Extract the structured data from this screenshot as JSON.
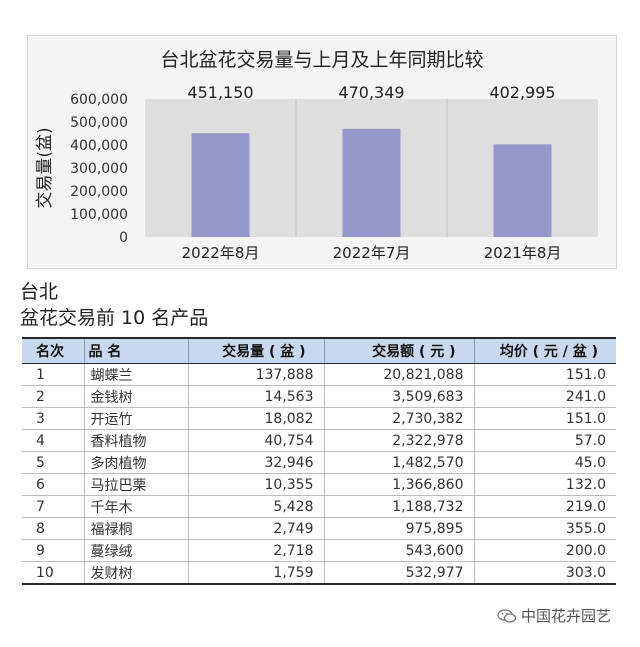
{
  "chart_data": {
    "type": "bar",
    "title": "台北盆花交易量与上月及上年同期比较",
    "ylabel": "交易量(盆)",
    "categories": [
      "2022年8月",
      "2022年7月",
      "2021年8月"
    ],
    "values": [
      451150,
      470349,
      402995
    ],
    "value_labels": [
      "451,150",
      "470,349",
      "402,995"
    ],
    "ylim": [
      0,
      600000
    ],
    "yticks": [
      0,
      100000,
      200000,
      300000,
      400000,
      500000,
      600000
    ],
    "ytick_labels": [
      "0",
      "100,000",
      "200,000",
      "300,000",
      "400,000",
      "500,000",
      "600,000"
    ],
    "bar_color": "#9597ca",
    "plot_bg": "#dedede",
    "grid": false
  },
  "heading": "台北",
  "subheading": "盆花交易前 10 名产品",
  "table": {
    "headers": [
      "名次",
      "品 名",
      "交易量 ( 盆 )",
      "交易额 ( 元 )",
      "均价 ( 元 / 盆 )"
    ],
    "rows": [
      [
        "1",
        "蝴蝶兰",
        "137,888",
        "20,821,088",
        "151.0"
      ],
      [
        "2",
        "金钱树",
        "14,563",
        "3,509,683",
        "241.0"
      ],
      [
        "3",
        "开运竹",
        "18,082",
        "2,730,382",
        "151.0"
      ],
      [
        "4",
        "香料植物",
        "40,754",
        "2,322,978",
        "57.0"
      ],
      [
        "5",
        "多肉植物",
        "32,946",
        "1,482,570",
        "45.0"
      ],
      [
        "6",
        "马拉巴栗",
        "10,355",
        "1,366,860",
        "132.0"
      ],
      [
        "7",
        "千年木",
        "5,428",
        "1,188,732",
        "219.0"
      ],
      [
        "8",
        "福禄桐",
        "2,749",
        "975,895",
        "355.0"
      ],
      [
        "9",
        "蔓绿绒",
        "2,718",
        "543,600",
        "200.0"
      ],
      [
        "10",
        "发财树",
        "1,759",
        "532,977",
        "303.0"
      ]
    ]
  },
  "watermark": {
    "text": "中国花卉园艺",
    "icon": "wechat-icon"
  }
}
